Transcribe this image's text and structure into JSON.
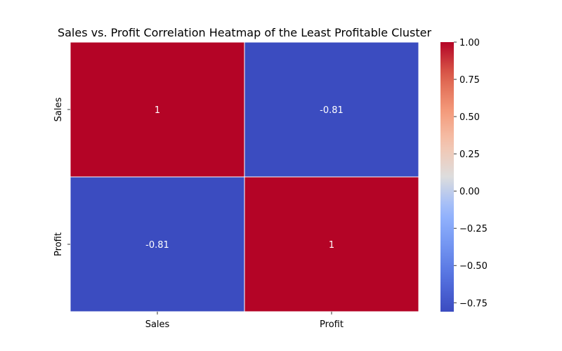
{
  "chart_data": {
    "type": "heatmap",
    "title": "Sales vs. Profit Correlation Heatmap of the Least Profitable Cluster",
    "xlabel": "",
    "ylabel": "",
    "x_categories": [
      "Sales",
      "Profit"
    ],
    "y_categories": [
      "Sales",
      "Profit"
    ],
    "values": [
      [
        1,
        -0.81
      ],
      [
        -0.81,
        1
      ]
    ],
    "cell_labels": [
      [
        "1",
        "-0.81"
      ],
      [
        "-0.81",
        "1"
      ]
    ],
    "colormap": "coolwarm",
    "vmin": -0.81,
    "vmax": 1.0,
    "colorbar": {
      "ticks": [
        1.0,
        0.75,
        0.5,
        0.25,
        0.0,
        -0.25,
        -0.5,
        -0.75
      ],
      "tick_labels": [
        "1.00",
        "0.75",
        "0.50",
        "0.25",
        "0.00",
        "−0.25",
        "−0.50",
        "−0.75"
      ],
      "placement": "right"
    },
    "colors": {
      "high": "#b40426",
      "low": "#3b4cc0",
      "cell_border": "#ffffff"
    }
  }
}
